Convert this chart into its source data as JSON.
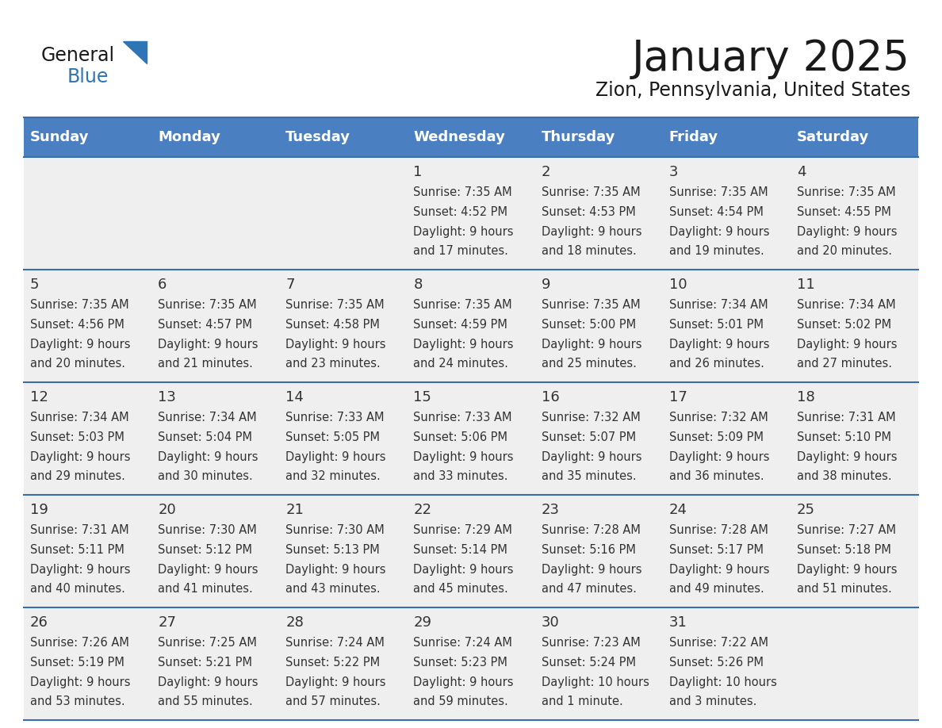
{
  "title": "January 2025",
  "subtitle": "Zion, Pennsylvania, United States",
  "days_of_week": [
    "Sunday",
    "Monday",
    "Tuesday",
    "Wednesday",
    "Thursday",
    "Friday",
    "Saturday"
  ],
  "header_bg": "#4A7FC1",
  "header_text": "#FFFFFF",
  "cell_bg": "#EFEFEF",
  "cell_bg_alt": "#FFFFFF",
  "separator_color": "#3A6EA8",
  "text_color": "#333333",
  "logo_general_color": "#1a1a1a",
  "logo_blue_color": "#2E75B6",
  "title_color": "#1a1a1a",
  "calendar_data": [
    [
      {
        "day": "",
        "sunrise": "",
        "sunset": "",
        "daylight": ""
      },
      {
        "day": "",
        "sunrise": "",
        "sunset": "",
        "daylight": ""
      },
      {
        "day": "",
        "sunrise": "",
        "sunset": "",
        "daylight": ""
      },
      {
        "day": "1",
        "sunrise": "7:35 AM",
        "sunset": "4:52 PM",
        "daylight_line1": "Daylight: 9 hours",
        "daylight_line2": "and 17 minutes."
      },
      {
        "day": "2",
        "sunrise": "7:35 AM",
        "sunset": "4:53 PM",
        "daylight_line1": "Daylight: 9 hours",
        "daylight_line2": "and 18 minutes."
      },
      {
        "day": "3",
        "sunrise": "7:35 AM",
        "sunset": "4:54 PM",
        "daylight_line1": "Daylight: 9 hours",
        "daylight_line2": "and 19 minutes."
      },
      {
        "day": "4",
        "sunrise": "7:35 AM",
        "sunset": "4:55 PM",
        "daylight_line1": "Daylight: 9 hours",
        "daylight_line2": "and 20 minutes."
      }
    ],
    [
      {
        "day": "5",
        "sunrise": "7:35 AM",
        "sunset": "4:56 PM",
        "daylight_line1": "Daylight: 9 hours",
        "daylight_line2": "and 20 minutes."
      },
      {
        "day": "6",
        "sunrise": "7:35 AM",
        "sunset": "4:57 PM",
        "daylight_line1": "Daylight: 9 hours",
        "daylight_line2": "and 21 minutes."
      },
      {
        "day": "7",
        "sunrise": "7:35 AM",
        "sunset": "4:58 PM",
        "daylight_line1": "Daylight: 9 hours",
        "daylight_line2": "and 23 minutes."
      },
      {
        "day": "8",
        "sunrise": "7:35 AM",
        "sunset": "4:59 PM",
        "daylight_line1": "Daylight: 9 hours",
        "daylight_line2": "and 24 minutes."
      },
      {
        "day": "9",
        "sunrise": "7:35 AM",
        "sunset": "5:00 PM",
        "daylight_line1": "Daylight: 9 hours",
        "daylight_line2": "and 25 minutes."
      },
      {
        "day": "10",
        "sunrise": "7:34 AM",
        "sunset": "5:01 PM",
        "daylight_line1": "Daylight: 9 hours",
        "daylight_line2": "and 26 minutes."
      },
      {
        "day": "11",
        "sunrise": "7:34 AM",
        "sunset": "5:02 PM",
        "daylight_line1": "Daylight: 9 hours",
        "daylight_line2": "and 27 minutes."
      }
    ],
    [
      {
        "day": "12",
        "sunrise": "7:34 AM",
        "sunset": "5:03 PM",
        "daylight_line1": "Daylight: 9 hours",
        "daylight_line2": "and 29 minutes."
      },
      {
        "day": "13",
        "sunrise": "7:34 AM",
        "sunset": "5:04 PM",
        "daylight_line1": "Daylight: 9 hours",
        "daylight_line2": "and 30 minutes."
      },
      {
        "day": "14",
        "sunrise": "7:33 AM",
        "sunset": "5:05 PM",
        "daylight_line1": "Daylight: 9 hours",
        "daylight_line2": "and 32 minutes."
      },
      {
        "day": "15",
        "sunrise": "7:33 AM",
        "sunset": "5:06 PM",
        "daylight_line1": "Daylight: 9 hours",
        "daylight_line2": "and 33 minutes."
      },
      {
        "day": "16",
        "sunrise": "7:32 AM",
        "sunset": "5:07 PM",
        "daylight_line1": "Daylight: 9 hours",
        "daylight_line2": "and 35 minutes."
      },
      {
        "day": "17",
        "sunrise": "7:32 AM",
        "sunset": "5:09 PM",
        "daylight_line1": "Daylight: 9 hours",
        "daylight_line2": "and 36 minutes."
      },
      {
        "day": "18",
        "sunrise": "7:31 AM",
        "sunset": "5:10 PM",
        "daylight_line1": "Daylight: 9 hours",
        "daylight_line2": "and 38 minutes."
      }
    ],
    [
      {
        "day": "19",
        "sunrise": "7:31 AM",
        "sunset": "5:11 PM",
        "daylight_line1": "Daylight: 9 hours",
        "daylight_line2": "and 40 minutes."
      },
      {
        "day": "20",
        "sunrise": "7:30 AM",
        "sunset": "5:12 PM",
        "daylight_line1": "Daylight: 9 hours",
        "daylight_line2": "and 41 minutes."
      },
      {
        "day": "21",
        "sunrise": "7:30 AM",
        "sunset": "5:13 PM",
        "daylight_line1": "Daylight: 9 hours",
        "daylight_line2": "and 43 minutes."
      },
      {
        "day": "22",
        "sunrise": "7:29 AM",
        "sunset": "5:14 PM",
        "daylight_line1": "Daylight: 9 hours",
        "daylight_line2": "and 45 minutes."
      },
      {
        "day": "23",
        "sunrise": "7:28 AM",
        "sunset": "5:16 PM",
        "daylight_line1": "Daylight: 9 hours",
        "daylight_line2": "and 47 minutes."
      },
      {
        "day": "24",
        "sunrise": "7:28 AM",
        "sunset": "5:17 PM",
        "daylight_line1": "Daylight: 9 hours",
        "daylight_line2": "and 49 minutes."
      },
      {
        "day": "25",
        "sunrise": "7:27 AM",
        "sunset": "5:18 PM",
        "daylight_line1": "Daylight: 9 hours",
        "daylight_line2": "and 51 minutes."
      }
    ],
    [
      {
        "day": "26",
        "sunrise": "7:26 AM",
        "sunset": "5:19 PM",
        "daylight_line1": "Daylight: 9 hours",
        "daylight_line2": "and 53 minutes."
      },
      {
        "day": "27",
        "sunrise": "7:25 AM",
        "sunset": "5:21 PM",
        "daylight_line1": "Daylight: 9 hours",
        "daylight_line2": "and 55 minutes."
      },
      {
        "day": "28",
        "sunrise": "7:24 AM",
        "sunset": "5:22 PM",
        "daylight_line1": "Daylight: 9 hours",
        "daylight_line2": "and 57 minutes."
      },
      {
        "day": "29",
        "sunrise": "7:24 AM",
        "sunset": "5:23 PM",
        "daylight_line1": "Daylight: 9 hours",
        "daylight_line2": "and 59 minutes."
      },
      {
        "day": "30",
        "sunrise": "7:23 AM",
        "sunset": "5:24 PM",
        "daylight_line1": "Daylight: 10 hours",
        "daylight_line2": "and 1 minute."
      },
      {
        "day": "31",
        "sunrise": "7:22 AM",
        "sunset": "5:26 PM",
        "daylight_line1": "Daylight: 10 hours",
        "daylight_line2": "and 3 minutes."
      },
      {
        "day": "",
        "sunrise": "",
        "sunset": "",
        "daylight_line1": "",
        "daylight_line2": ""
      }
    ]
  ]
}
